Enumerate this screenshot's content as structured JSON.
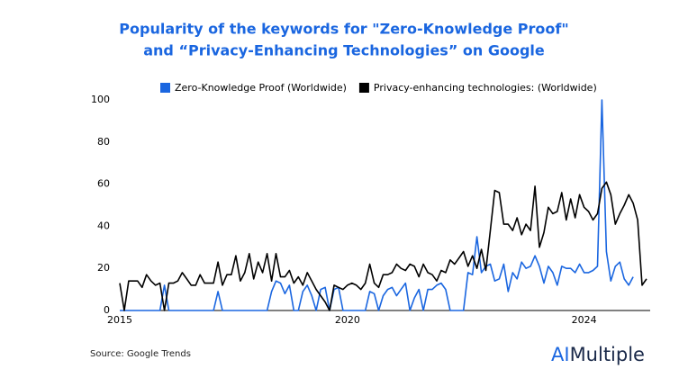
{
  "chart_data": {
    "type": "line",
    "title": [
      "Popularity of the keywords for \"Zero-Knowledge Proof\"",
      "and “Privacy-Enhancing Technologies” on Google"
    ],
    "title_color": "#1a66e0",
    "categories": [
      "2015",
      null,
      null,
      null,
      null,
      null,
      null,
      null,
      null,
      null,
      null,
      null,
      null,
      null,
      null,
      null,
      null,
      null,
      null,
      null,
      null,
      null,
      null,
      null,
      null,
      null,
      null,
      null,
      null,
      null,
      null,
      null,
      null,
      null,
      null,
      null,
      null,
      null,
      null,
      null,
      null,
      null,
      null,
      null,
      null,
      null,
      null,
      null,
      null,
      null,
      null,
      "2020",
      null,
      null,
      null,
      null,
      null,
      null,
      null,
      null,
      null,
      null,
      null,
      null,
      null,
      null,
      null,
      null,
      null,
      null,
      null,
      null,
      null,
      null,
      null,
      null,
      null,
      null,
      null,
      null,
      null,
      null,
      null,
      null,
      null,
      null,
      null,
      null,
      null,
      null,
      null,
      null,
      null,
      null,
      null,
      null,
      null,
      null,
      null,
      null,
      null,
      null,
      null,
      null,
      "2024",
      null,
      null,
      null,
      null,
      null,
      null,
      null,
      null,
      null,
      null,
      null,
      null,
      null,
      null
    ],
    "series": [
      {
        "name": "Zero-Knowledge Proof (Worldwide)",
        "color": "#1a66e0",
        "values": [
          0,
          0,
          0,
          0,
          0,
          0,
          0,
          0,
          0,
          0,
          12,
          0,
          0,
          0,
          0,
          0,
          0,
          0,
          0,
          0,
          0,
          0,
          9,
          0,
          0,
          0,
          0,
          0,
          0,
          0,
          0,
          0,
          0,
          0,
          9,
          14,
          13,
          8,
          12,
          0,
          0,
          9,
          12,
          7,
          0,
          10,
          11,
          0,
          10,
          11,
          0,
          0,
          0,
          0,
          0,
          0,
          9,
          8,
          0,
          7,
          10,
          11,
          7,
          10,
          13,
          0,
          6,
          10,
          0,
          10,
          10,
          12,
          13,
          10,
          0,
          0,
          0,
          0,
          18,
          17,
          35,
          18,
          21,
          22,
          14,
          15,
          22,
          9,
          18,
          15,
          23,
          20,
          21,
          26,
          21,
          13,
          21,
          18,
          12,
          21,
          20,
          20,
          18,
          22,
          18,
          18,
          19,
          21,
          100,
          28,
          14,
          21,
          23,
          15,
          12,
          16,
          null,
          null,
          null
        ]
      },
      {
        "name": "Privacy-enhancing technologies: (Worldwide)",
        "color": "#000000",
        "values": [
          13,
          0,
          14,
          14,
          14,
          11,
          17,
          14,
          12,
          13,
          0,
          13,
          13,
          14,
          18,
          15,
          12,
          12,
          17,
          13,
          13,
          13,
          23,
          12,
          17,
          17,
          26,
          14,
          18,
          27,
          15,
          23,
          18,
          27,
          14,
          27,
          16,
          16,
          19,
          13,
          16,
          12,
          18,
          14,
          10,
          7,
          4,
          0,
          12,
          11,
          10,
          12,
          13,
          12,
          10,
          13,
          22,
          13,
          11,
          17,
          17,
          18,
          22,
          20,
          19,
          22,
          21,
          16,
          22,
          18,
          17,
          14,
          19,
          18,
          24,
          22,
          25,
          28,
          21,
          26,
          20,
          29,
          19,
          38,
          57,
          56,
          41,
          41,
          38,
          44,
          36,
          41,
          38,
          59,
          30,
          37,
          49,
          46,
          47,
          56,
          43,
          53,
          44,
          55,
          49,
          47,
          43,
          46,
          58,
          61,
          55,
          41,
          46,
          50,
          55,
          51,
          43,
          12,
          15
        ]
      }
    ],
    "ylim": [
      0,
      100
    ],
    "yticks": [
      0,
      20,
      40,
      60,
      80,
      100
    ],
    "grid": false,
    "legend": "top",
    "source": "Source: Google Trends",
    "logo": [
      "AI",
      "Multiple"
    ]
  }
}
